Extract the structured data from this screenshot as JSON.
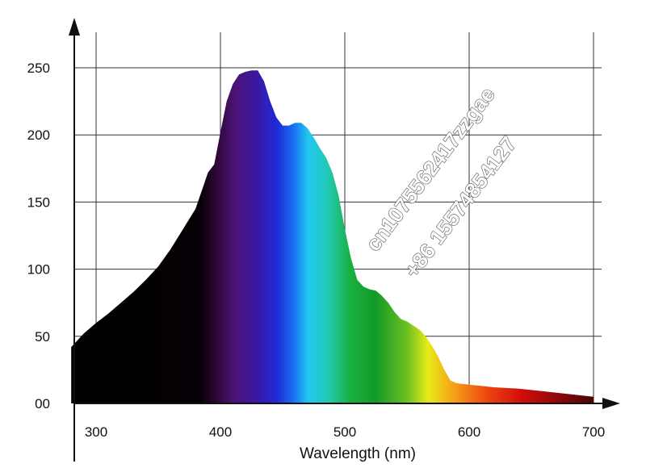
{
  "chart_data": {
    "type": "area",
    "title": "",
    "xlabel": "Wavelength (nm)",
    "ylabel": "",
    "xlim": [
      280,
      700
    ],
    "ylim": [
      0,
      250
    ],
    "x_ticks": [
      300,
      400,
      500,
      600,
      700
    ],
    "x_tick_labels": [
      "300",
      "400",
      "500",
      "600",
      "700"
    ],
    "y_ticks": [
      0,
      50,
      100,
      150,
      200,
      250
    ],
    "y_tick_labels": [
      "00",
      "50",
      "100",
      "150",
      "200",
      "250"
    ],
    "grid": true,
    "fill": "visible-spectrum gradient",
    "series": [
      {
        "x": [
          280,
          290,
          300,
          310,
          320,
          330,
          340,
          350,
          360,
          370,
          380,
          390,
          395,
          400,
          405,
          410,
          415,
          420,
          425,
          430,
          435,
          440,
          445,
          450,
          455,
          460,
          465,
          470,
          475,
          480,
          485,
          490,
          495,
          500,
          505,
          510,
          515,
          520,
          525,
          530,
          535,
          540,
          545,
          550,
          555,
          560,
          565,
          570,
          575,
          580,
          585,
          590,
          600,
          620,
          640,
          660,
          680,
          700
        ],
        "values": [
          42,
          52,
          60,
          67,
          75,
          83,
          92,
          102,
          115,
          130,
          145,
          172,
          178,
          202,
          225,
          238,
          245,
          247,
          248,
          248,
          240,
          225,
          213,
          207,
          207,
          209,
          209,
          205,
          198,
          190,
          183,
          172,
          155,
          130,
          108,
          92,
          87,
          85,
          84,
          80,
          75,
          68,
          63,
          61,
          58,
          55,
          50,
          43,
          35,
          25,
          17,
          15,
          14,
          12,
          11,
          9,
          7,
          5
        ]
      }
    ]
  },
  "watermark": {
    "line1": "cn1075562417zzgae",
    "line2": "+86 15574854127"
  }
}
